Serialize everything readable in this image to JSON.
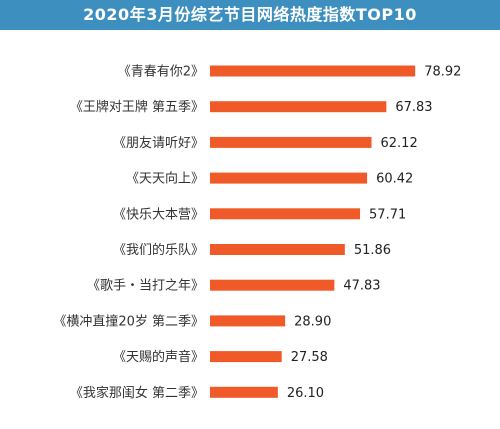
{
  "chart_data": {
    "type": "bar",
    "orientation": "horizontal",
    "title": "2020年3月份综艺节目网络热度指数TOP10",
    "categories": [
      "《青春有你2》",
      "《王牌对王牌 第五季》",
      "《朋友请听好》",
      "《天天向上》",
      "《快乐大本营》",
      "《我们的乐队》",
      "《歌手・当打之年》",
      "《横冲直撞20岁 第二季》",
      "《天赐的声音》",
      "《我家那闺女 第二季》"
    ],
    "values": [
      78.92,
      67.83,
      62.12,
      60.42,
      57.71,
      51.86,
      47.83,
      28.9,
      27.58,
      26.1
    ],
    "value_labels": [
      "78.92",
      "67.83",
      "62.12",
      "60.42",
      "57.71",
      "51.86",
      "47.83",
      "28.90",
      "27.58",
      "26.10"
    ],
    "xlabel": "",
    "ylabel": "",
    "xlim": [
      0,
      80
    ],
    "grid": false,
    "legend": "none",
    "colors": {
      "bar": "#f05a28",
      "title_background": "#3d8fc0",
      "title_text": "#ffffff"
    }
  }
}
